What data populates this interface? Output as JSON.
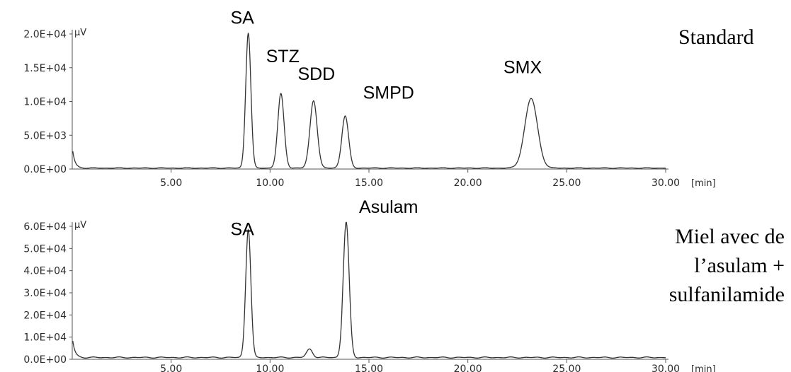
{
  "chart_data": [
    {
      "type": "line",
      "title": "Standard",
      "ylabel": "µV",
      "xlabel": "[min]",
      "xlim": [
        0,
        30
      ],
      "ylim": [
        0,
        20000
      ],
      "x_ticks": [
        "5.00",
        "10.00",
        "15.00",
        "20.00",
        "25.00",
        "30.00"
      ],
      "y_ticks": [
        "0.0E+00",
        "5.0E+03",
        "1.0E+04",
        "1.5E+04",
        "2.0E+04"
      ],
      "baseline": 150,
      "peaks": [
        {
          "label": "SA",
          "x": 8.9,
          "y": 20000,
          "width": 0.13
        },
        {
          "label": "STZ",
          "x": 10.55,
          "y": 11000,
          "width": 0.16
        },
        {
          "label": "SDD",
          "x": 12.2,
          "y": 10000,
          "width": 0.18
        },
        {
          "label": "SMPD",
          "x": 13.8,
          "y": 7700,
          "width": 0.17
        },
        {
          "label": "SMX",
          "x": 23.2,
          "y": 10300,
          "width": 0.32
        }
      ],
      "annotations": [
        {
          "text": "SA",
          "x": 8.0,
          "y": 21500
        },
        {
          "text": "STZ",
          "x": 9.8,
          "y": 15800
        },
        {
          "text": "SDD",
          "x": 11.4,
          "y": 13200
        },
        {
          "text": "SMPD",
          "x": 14.7,
          "y": 10400
        },
        {
          "text": "SMX",
          "x": 21.8,
          "y": 14200
        }
      ]
    },
    {
      "type": "line",
      "title": "Miel avec de l’asulam + sulfanilamide",
      "title_lines": [
        "Miel avec de",
        "l’asulam +",
        "sulfanilamide"
      ],
      "ylabel": "µV",
      "xlabel": "[min]",
      "xlim": [
        0,
        30
      ],
      "ylim": [
        0,
        60000
      ],
      "x_ticks": [
        "5.00",
        "10.00",
        "15.00",
        "20.00",
        "25.00",
        "30.00"
      ],
      "y_ticks": [
        "0.0E+00",
        "1.0E+04",
        "2.0E+04",
        "3.0E+04",
        "4.0E+04",
        "5.0E+04",
        "6.0E+04"
      ],
      "baseline": 800,
      "peaks": [
        {
          "label": "SA",
          "x": 8.9,
          "y": 58000,
          "width": 0.13
        },
        {
          "label": "",
          "x": 12.0,
          "y": 3800,
          "width": 0.15
        },
        {
          "label": "Asulam",
          "x": 13.85,
          "y": 61000,
          "width": 0.15
        }
      ],
      "annotations": [
        {
          "text": "SA",
          "x": 8.0,
          "y": 56000
        },
        {
          "text": "Asulam",
          "x": 14.5,
          "y": 66000
        }
      ]
    }
  ]
}
